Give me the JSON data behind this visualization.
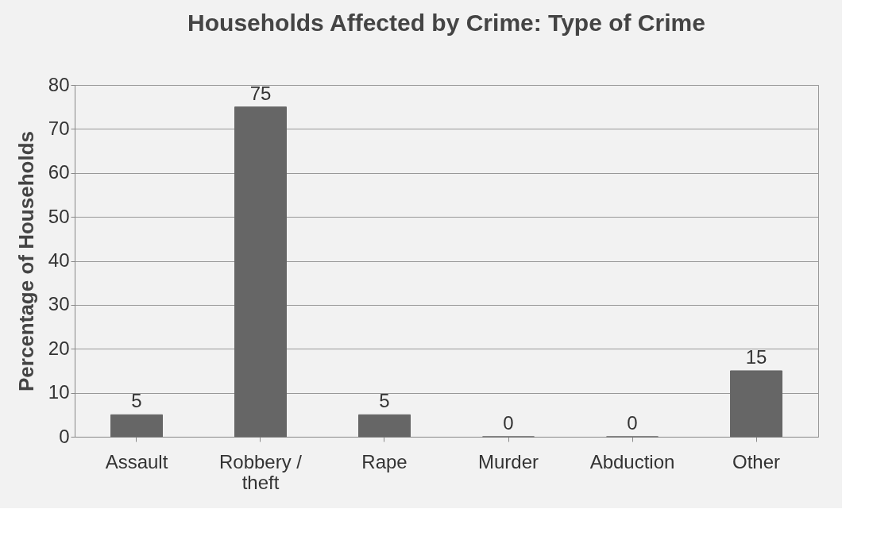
{
  "chart_data": {
    "type": "bar",
    "title": "Households Affected by Crime: Type of Crime",
    "ylabel": "Percentage of Households",
    "categories": [
      "Assault",
      "Robbery / theft",
      "Rape",
      "Murder",
      "Abduction",
      "Other"
    ],
    "values": [
      5,
      75,
      5,
      0,
      0,
      15
    ],
    "color": "#666666",
    "ylim": [
      0,
      80
    ],
    "yticks": [
      0,
      10,
      20,
      30,
      40,
      50,
      60,
      70,
      80
    ],
    "grid": "y",
    "data_labels": true
  }
}
